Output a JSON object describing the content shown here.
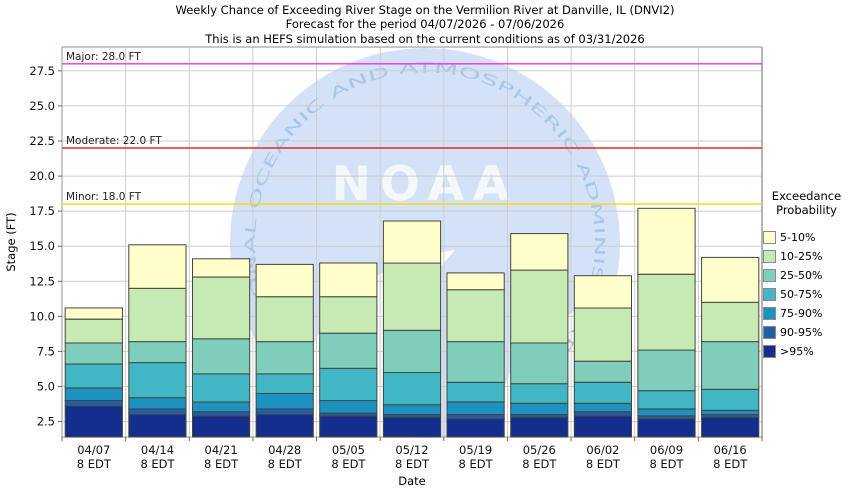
{
  "title": {
    "line1": "Weekly Chance of Exceeding River Stage on the Vermilion River at Danville, IL (DNVI2)",
    "line2": "Forecast for the period 04/07/2026 - 07/06/2026",
    "line3": "This is an HEFS simulation based on the current conditions as of 03/31/2026"
  },
  "legend": {
    "title_line1": "Exceedance",
    "title_line2": "Probability"
  },
  "watermark": {
    "arc_text": "NATIONAL OCEANIC AND ATMOSPHERIC ADMINISTRATION",
    "center_text": "NOAA",
    "circle_color": "#D3E2F7",
    "arc_text_color": "#A9C6EC",
    "center_text_color": "#F4F8FD",
    "bird_color": "#FFFFFF"
  },
  "chart_data": {
    "type": "bar",
    "stacked": true,
    "title": "Weekly Chance of Exceeding River Stage on the Vermilion River at Danville, IL (DNVI2)",
    "xlabel": "Date",
    "ylabel": "Stage (FT)",
    "ylim": [
      1.4,
      29.2
    ],
    "yticks": [
      2.5,
      5.0,
      7.5,
      10.0,
      12.5,
      15.0,
      17.5,
      20.0,
      22.5,
      25.0,
      27.5
    ],
    "grid": true,
    "legend_position": "right",
    "categories": [
      "04/07",
      "04/14",
      "04/21",
      "04/28",
      "05/05",
      "05/12",
      "05/19",
      "05/26",
      "06/02",
      "06/09",
      "06/16"
    ],
    "x_tick_sublabel": "8 EDT",
    "series": [
      {
        "name": ">95%",
        "color": "#132E8C",
        "tops": [
          3.6,
          3.0,
          2.9,
          3.0,
          2.9,
          2.8,
          2.7,
          2.8,
          2.9,
          2.7,
          2.8
        ]
      },
      {
        "name": "90-95%",
        "color": "#225EA8",
        "tops": [
          4.0,
          3.4,
          3.2,
          3.4,
          3.1,
          3.0,
          3.0,
          3.0,
          3.2,
          2.9,
          3.0
        ]
      },
      {
        "name": "75-90%",
        "color": "#1D91C0",
        "tops": [
          4.9,
          4.2,
          3.9,
          4.5,
          4.0,
          3.7,
          3.9,
          3.8,
          3.8,
          3.4,
          3.3
        ]
      },
      {
        "name": "50-75%",
        "color": "#41B6C4",
        "tops": [
          6.6,
          6.7,
          5.9,
          5.9,
          6.3,
          6.0,
          5.3,
          5.2,
          5.3,
          4.7,
          4.8
        ]
      },
      {
        "name": "25-50%",
        "color": "#7FCDBB",
        "tops": [
          8.1,
          8.2,
          8.4,
          8.2,
          8.8,
          9.0,
          8.2,
          8.1,
          6.8,
          7.6,
          8.2
        ]
      },
      {
        "name": "10-25%",
        "color": "#C7E9B4",
        "tops": [
          9.8,
          12.0,
          12.8,
          11.4,
          11.4,
          13.8,
          11.9,
          13.3,
          10.6,
          13.0,
          11.0
        ]
      },
      {
        "name": "5-10%",
        "color": "#FFFFCC",
        "tops": [
          10.6,
          15.1,
          14.1,
          13.7,
          13.8,
          16.8,
          13.1,
          15.9,
          12.9,
          17.7,
          14.2
        ]
      }
    ],
    "thresholds": [
      {
        "label": "Major: 28.0 FT",
        "value": 28.0,
        "color": "#FA28F0"
      },
      {
        "label": "Moderate: 22.0 FT",
        "value": 22.0,
        "color": "#E8291F"
      },
      {
        "label": "Minor: 18.0 FT",
        "value": 18.0,
        "color": "#FFD700"
      }
    ]
  }
}
